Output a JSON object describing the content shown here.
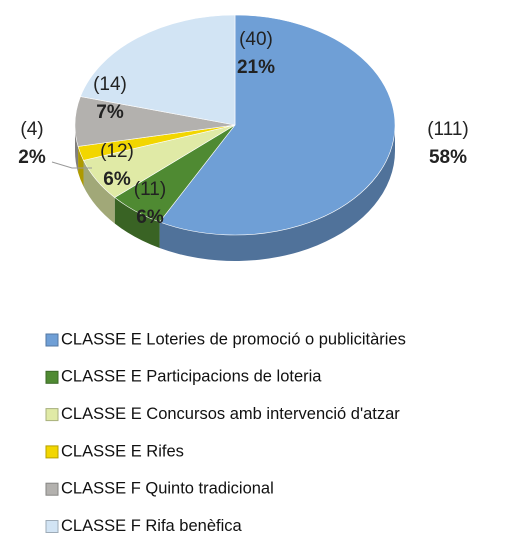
{
  "chart_data": {
    "type": "pie",
    "categories": [
      "CLASSE E Loteries de promoció o publicitàries",
      "CLASSE E Participacions de loteria",
      "CLASSE E Concursos amb intervenció d'atzar",
      "CLASSE E Rifes",
      "CLASSE F Quinto tradicional",
      "CLASSE F Rifa benèfica"
    ],
    "values": [
      111,
      11,
      12,
      4,
      14,
      40
    ],
    "value_labels": [
      "(111)",
      "(11)",
      "(12)",
      "(4)",
      "(14)",
      "(40)"
    ],
    "percentages": [
      58,
      6,
      6,
      2,
      7,
      21
    ],
    "percentage_labels": [
      "58%",
      "6%",
      "6%",
      "2%",
      "7%",
      "21%"
    ],
    "colors": [
      "#6f9fd6",
      "#4f8a32",
      "#e0eaa6",
      "#f2d600",
      "#b3b1ae",
      "#d2e4f4"
    ]
  }
}
